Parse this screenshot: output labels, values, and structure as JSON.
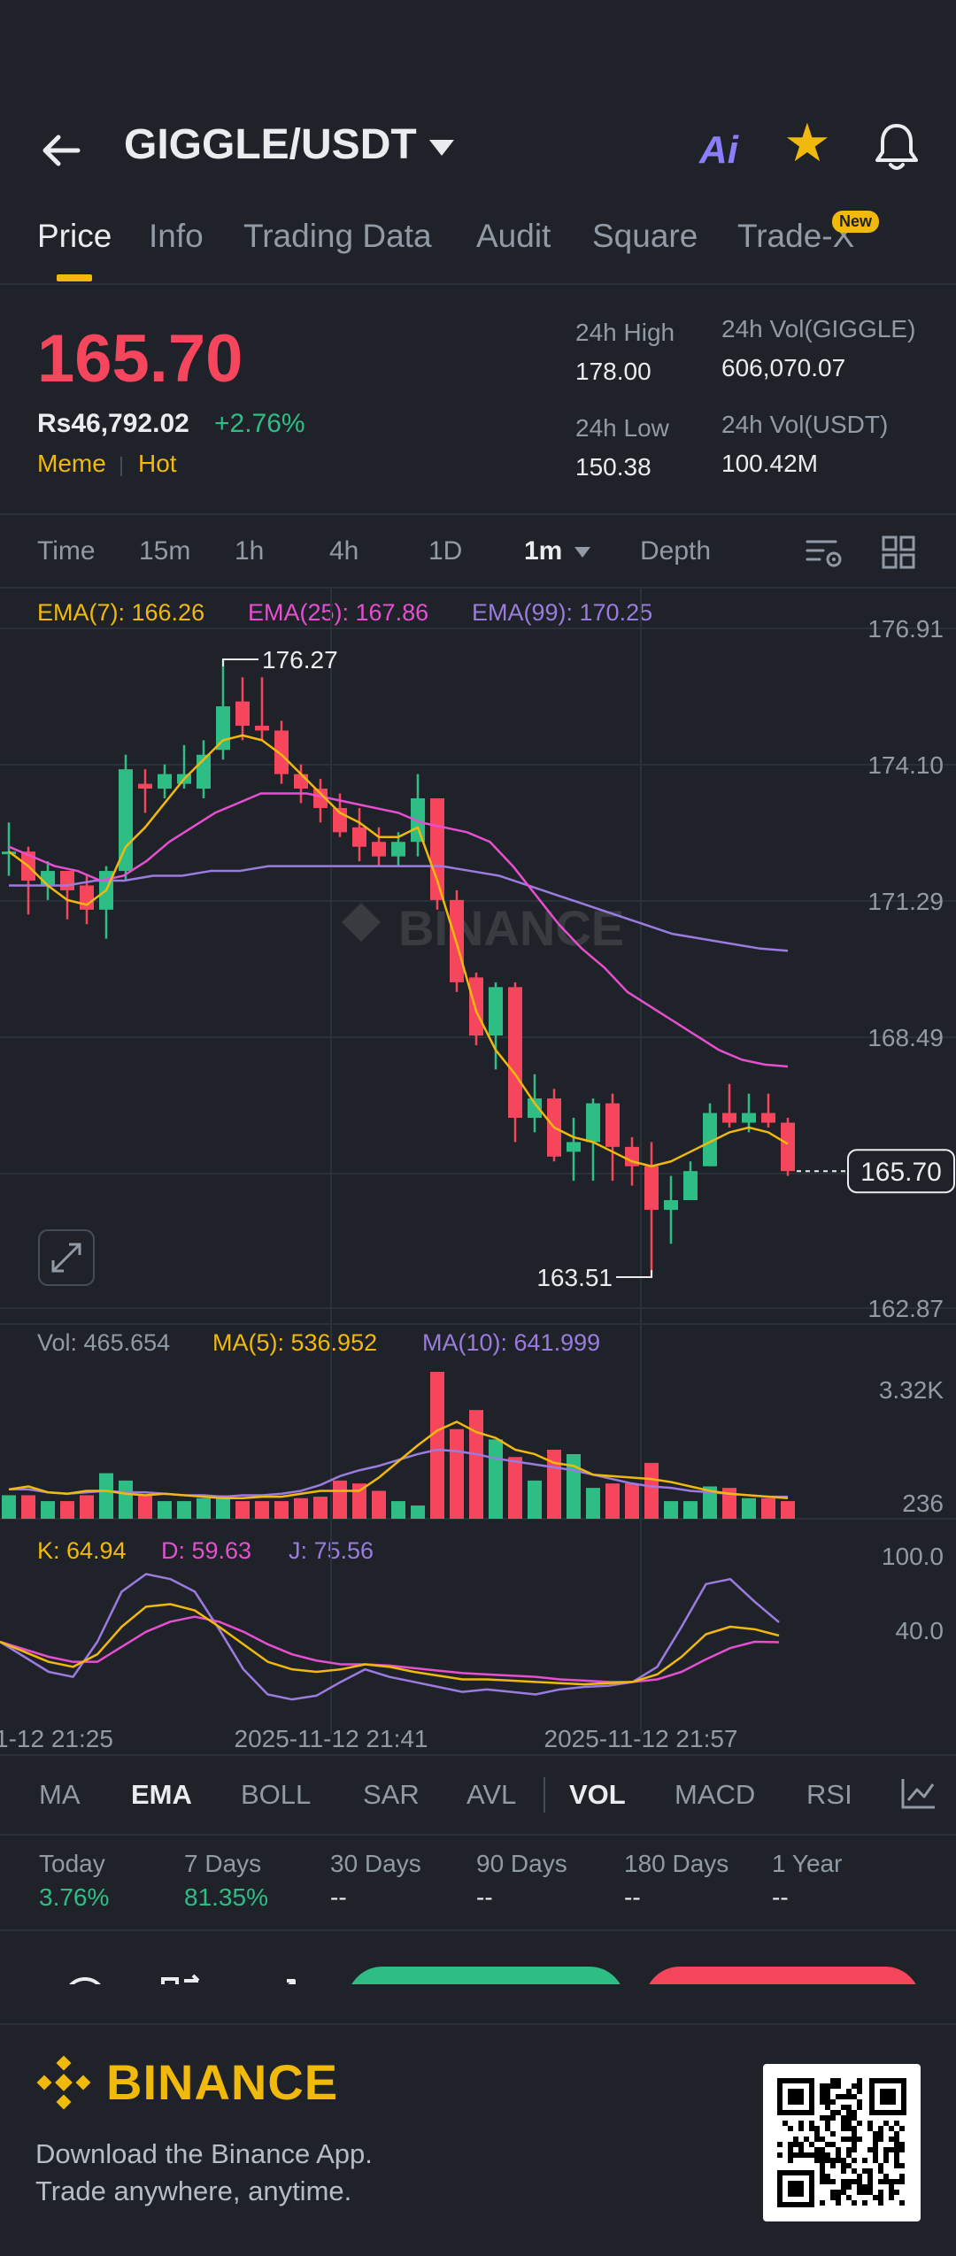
{
  "header": {
    "pair": "GIGGLE/USDT",
    "ai_label": "Ai"
  },
  "tabs": [
    {
      "label": "Price",
      "active": true
    },
    {
      "label": "Info"
    },
    {
      "label": "Trading Data"
    },
    {
      "label": "Audit"
    },
    {
      "label": "Square"
    },
    {
      "label": "Trade-X",
      "badge": "New"
    }
  ],
  "price": {
    "last": "165.70",
    "fiat": "Rs46,792.02",
    "change": "+2.76%",
    "tags": [
      "Meme",
      "Hot"
    ]
  },
  "stats": {
    "high_label": "24h High",
    "high": "178.00",
    "low_label": "24h Low",
    "low": "150.38",
    "vol_base_label": "24h Vol(GIGGLE)",
    "vol_base": "606,070.07",
    "vol_quote_label": "24h Vol(USDT)",
    "vol_quote": "100.42M"
  },
  "intervals": [
    {
      "label": "Time"
    },
    {
      "label": "15m"
    },
    {
      "label": "1h"
    },
    {
      "label": "4h"
    },
    {
      "label": "1D"
    },
    {
      "label": "1m",
      "active": true
    },
    {
      "label": "Depth"
    }
  ],
  "legends": {
    "ema7": "EMA(7): 166.26",
    "ema25": "EMA(25): 167.86",
    "ema99": "EMA(99): 170.25",
    "vol": "Vol: 465.654",
    "ma5": "MA(5): 536.952",
    "ma10": "MA(10): 641.999",
    "k": "K: 64.94",
    "d": "D: 59.63",
    "j": "J: 75.56"
  },
  "colors": {
    "up": "#2ebd85",
    "down": "#f6465d",
    "ema7": "#f0b90b",
    "ema25": "#e64fd0",
    "ema99": "#9b7be0"
  },
  "chart_data": {
    "type": "candlestick",
    "watermark": "BINANCE",
    "price_axis": [
      "176.91",
      "174.10",
      "171.29",
      "168.49",
      "165.70",
      "162.87"
    ],
    "ylim": [
      162.87,
      176.91
    ],
    "current_price": "165.70",
    "max_label": "176.27",
    "min_label": "163.51",
    "x_ticks": [
      "1-12 21:25",
      "2025-11-12 21:41",
      "2025-11-12 21:57"
    ],
    "candles": [
      [
        172.3,
        172.3,
        172.9,
        171.8
      ],
      [
        172.3,
        171.7,
        172.4,
        171.0
      ],
      [
        171.6,
        171.9,
        172.1,
        171.3
      ],
      [
        171.9,
        171.5,
        171.9,
        170.9
      ],
      [
        171.6,
        171.1,
        171.8,
        170.8
      ],
      [
        171.1,
        171.9,
        172.0,
        170.5
      ],
      [
        171.9,
        174.0,
        174.3,
        171.7
      ],
      [
        173.7,
        173.6,
        174.0,
        173.1
      ],
      [
        173.6,
        173.9,
        174.1,
        173.4
      ],
      [
        173.7,
        173.9,
        174.5,
        173.6
      ],
      [
        173.6,
        174.3,
        174.6,
        173.4
      ],
      [
        174.4,
        175.3,
        176.27,
        174.2
      ],
      [
        175.4,
        174.9,
        175.9,
        174.6
      ],
      [
        174.9,
        174.8,
        175.9,
        174.6
      ],
      [
        174.8,
        173.9,
        175.0,
        173.7
      ],
      [
        173.9,
        173.6,
        174.1,
        173.3
      ],
      [
        173.6,
        173.2,
        173.8,
        172.9
      ],
      [
        173.2,
        172.7,
        173.5,
        172.6
      ],
      [
        172.8,
        172.4,
        173.2,
        172.1
      ],
      [
        172.5,
        172.2,
        172.8,
        172.0
      ],
      [
        172.2,
        172.5,
        172.7,
        172.0
      ],
      [
        172.5,
        173.4,
        173.9,
        172.2
      ],
      [
        173.4,
        171.3,
        173.4,
        171.1
      ],
      [
        171.3,
        169.6,
        171.5,
        169.4
      ],
      [
        169.7,
        168.5,
        169.8,
        168.3
      ],
      [
        168.5,
        169.5,
        169.6,
        167.8
      ],
      [
        169.5,
        166.8,
        169.6,
        166.3
      ],
      [
        166.8,
        167.2,
        167.7,
        166.5
      ],
      [
        167.2,
        166.0,
        167.4,
        165.9
      ],
      [
        166.1,
        166.3,
        166.8,
        165.5
      ],
      [
        166.3,
        167.1,
        167.2,
        165.5
      ],
      [
        167.1,
        166.2,
        167.3,
        165.5
      ],
      [
        166.2,
        165.8,
        166.4,
        165.4
      ],
      [
        165.8,
        164.9,
        166.3,
        163.51
      ],
      [
        164.9,
        165.1,
        165.6,
        164.2
      ],
      [
        165.1,
        165.7,
        165.9,
        165.1
      ],
      [
        165.8,
        166.9,
        167.1,
        165.8
      ],
      [
        166.9,
        166.7,
        167.5,
        166.6
      ],
      [
        166.7,
        166.9,
        167.3,
        166.5
      ],
      [
        166.9,
        166.7,
        167.3,
        166.6
      ],
      [
        166.7,
        165.7,
        166.8,
        165.6
      ]
    ],
    "ema7": [
      172.3,
      172.0,
      171.6,
      171.3,
      171.2,
      171.5,
      172.4,
      172.8,
      173.3,
      173.8,
      174.2,
      174.6,
      174.7,
      174.6,
      174.3,
      173.9,
      173.5,
      173.1,
      172.9,
      172.6,
      172.6,
      172.8,
      171.7,
      170.4,
      169.0,
      168.2,
      167.7,
      167.1,
      166.6,
      166.4,
      166.3,
      166.1,
      165.9,
      165.8,
      165.9,
      166.1,
      166.3,
      166.5,
      166.6,
      166.5,
      166.26
    ],
    "ema25": [
      172.4,
      172.2,
      172.0,
      171.9,
      171.7,
      171.8,
      172.1,
      172.5,
      172.8,
      173.1,
      173.3,
      173.5,
      173.5,
      173.5,
      173.4,
      173.3,
      173.2,
      173.1,
      172.9,
      172.8,
      172.7,
      172.5,
      172.0,
      171.4,
      170.8,
      170.3,
      169.9,
      169.4,
      169.1,
      168.8,
      168.5,
      168.2,
      168.0,
      167.9,
      167.86
    ],
    "ema99": [
      171.6,
      171.6,
      171.6,
      171.7,
      171.7,
      171.8,
      171.8,
      171.9,
      171.9,
      172.0,
      172.0,
      172.0,
      172.0,
      172.0,
      172.0,
      172.0,
      171.9,
      171.8,
      171.6,
      171.4,
      171.2,
      171.0,
      170.8,
      170.6,
      170.5,
      170.4,
      170.3,
      170.25
    ],
    "vol_axis": [
      "3.32K",
      "236"
    ],
    "volume": [
      0.16,
      0.16,
      0.12,
      0.12,
      0.16,
      0.31,
      0.26,
      0.16,
      0.12,
      0.12,
      0.14,
      0.16,
      0.12,
      0.12,
      0.12,
      0.14,
      0.15,
      0.26,
      0.24,
      0.19,
      0.12,
      0.09,
      1.0,
      0.61,
      0.74,
      0.54,
      0.42,
      0.26,
      0.47,
      0.44,
      0.21,
      0.24,
      0.24,
      0.38,
      0.12,
      0.12,
      0.22,
      0.21,
      0.14,
      0.14,
      0.12
    ],
    "ma5": [
      0.2,
      0.22,
      0.18,
      0.17,
      0.19,
      0.19,
      0.17,
      0.16,
      0.17,
      0.16,
      0.15,
      0.14,
      0.14,
      0.15,
      0.15,
      0.17,
      0.19,
      0.19,
      0.19,
      0.28,
      0.39,
      0.5,
      0.6,
      0.66,
      0.59,
      0.55,
      0.47,
      0.44,
      0.38,
      0.36,
      0.3,
      0.29,
      0.28,
      0.27,
      0.25,
      0.22,
      0.19,
      0.17,
      0.16,
      0.15,
      0.14
    ],
    "ma10": [
      0.2,
      0.2,
      0.18,
      0.17,
      0.18,
      0.19,
      0.18,
      0.18,
      0.17,
      0.16,
      0.16,
      0.15,
      0.16,
      0.16,
      0.17,
      0.19,
      0.23,
      0.29,
      0.33,
      0.36,
      0.4,
      0.44,
      0.47,
      0.46,
      0.44,
      0.41,
      0.39,
      0.37,
      0.35,
      0.33,
      0.3,
      0.27,
      0.24,
      0.22,
      0.21,
      0.19,
      0.18,
      0.17,
      0.16,
      0.15,
      0.15
    ],
    "kdj_axis": [
      "100.0",
      "40.0"
    ],
    "k": [
      60,
      52,
      44,
      40,
      50,
      72,
      88,
      90,
      85,
      72,
      58,
      44,
      38,
      36,
      38,
      42,
      40,
      36,
      33,
      30,
      30,
      29,
      28,
      27,
      26,
      27,
      28,
      34,
      48,
      66,
      72,
      70,
      64.94
    ],
    "d": [
      60,
      54,
      48,
      44,
      44,
      56,
      68,
      76,
      80,
      76,
      68,
      58,
      50,
      45,
      42,
      42,
      41,
      39,
      37,
      35,
      34,
      33,
      32,
      30,
      29,
      28,
      28,
      30,
      36,
      46,
      55,
      60,
      59.63
    ],
    "j": [
      60,
      48,
      36,
      32,
      60,
      100,
      114,
      110,
      100,
      70,
      38,
      18,
      14,
      17,
      28,
      38,
      32,
      28,
      24,
      20,
      22,
      20,
      18,
      22,
      24,
      25,
      28,
      40,
      72,
      106,
      110,
      92,
      75.56
    ]
  },
  "indicators": [
    {
      "label": "MA"
    },
    {
      "label": "EMA",
      "active": true
    },
    {
      "label": "BOLL"
    },
    {
      "label": "SAR"
    },
    {
      "label": "AVL"
    },
    {
      "label": "VOL",
      "active": true
    },
    {
      "label": "MACD"
    },
    {
      "label": "RSI"
    }
  ],
  "performance": [
    {
      "label": "Today",
      "value": "3.76%"
    },
    {
      "label": "7 Days",
      "value": "81.35%"
    },
    {
      "label": "30 Days",
      "value": "--"
    },
    {
      "label": "90 Days",
      "value": "--"
    },
    {
      "label": "180 Days",
      "value": "--"
    },
    {
      "label": "1 Year",
      "value": "--"
    }
  ],
  "footer": {
    "brand": "BINANCE",
    "line1": "Download the Binance App.",
    "line2": "Trade anywhere, anytime."
  }
}
